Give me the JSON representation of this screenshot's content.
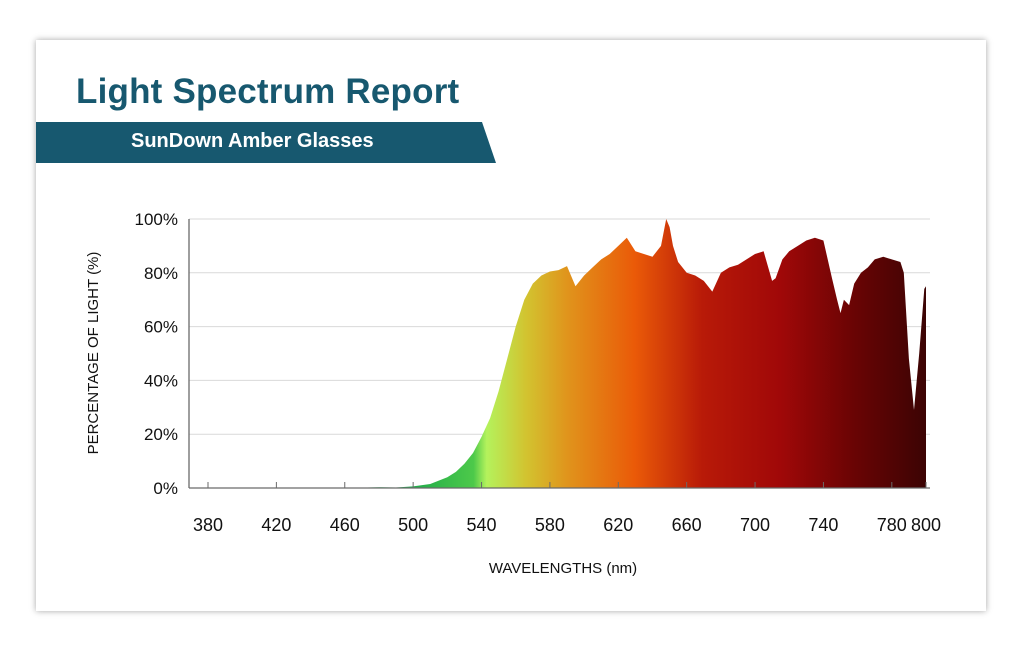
{
  "header": {
    "title": "Light Spectrum Report",
    "subtitle": "SunDown Amber Glasses",
    "accent_color": "#17586f"
  },
  "chart_data": {
    "type": "area",
    "title": "Light Spectrum Report",
    "subtitle": "SunDown Amber Glasses",
    "xlabel": "WAVELENGTHS (nm)",
    "ylabel": "PERCENTAGE OF LIGHT (%)",
    "xlim": [
      380,
      800
    ],
    "ylim": [
      0,
      100
    ],
    "x_ticks": [
      380,
      420,
      460,
      500,
      540,
      580,
      620,
      660,
      700,
      740,
      780,
      800
    ],
    "y_ticks": [
      "0%",
      "20%",
      "40%",
      "60%",
      "80%",
      "100%"
    ],
    "grid": "horizontal",
    "fill": "spectral gradient (green to dark red)",
    "x": [
      380,
      460,
      480,
      490,
      500,
      510,
      520,
      525,
      530,
      535,
      540,
      545,
      550,
      555,
      560,
      565,
      570,
      575,
      580,
      585,
      590,
      595,
      600,
      605,
      610,
      615,
      620,
      625,
      630,
      635,
      640,
      645,
      648,
      650,
      652,
      655,
      660,
      665,
      670,
      675,
      680,
      685,
      690,
      695,
      700,
      705,
      710,
      712,
      716,
      720,
      725,
      730,
      735,
      740,
      745,
      748,
      750,
      752,
      755,
      758,
      762,
      766,
      770,
      775,
      780,
      785,
      787,
      790,
      793,
      796,
      799,
      800
    ],
    "values": [
      0,
      0,
      0.3,
      0.2,
      0.6,
      1.5,
      4,
      6,
      9,
      13,
      19,
      26,
      36,
      48,
      60,
      70,
      76,
      79,
      80.5,
      81,
      82.5,
      75,
      79,
      82,
      85,
      87,
      90,
      93,
      88,
      87,
      86,
      90,
      100,
      97,
      90,
      84,
      80,
      79,
      77,
      73,
      80,
      82,
      83,
      85,
      87,
      88,
      77,
      78,
      85,
      88,
      90,
      92,
      93,
      92,
      78,
      70,
      65,
      70,
      68,
      76,
      80,
      82,
      85,
      86,
      85,
      84,
      80,
      48,
      29,
      50,
      74,
      75
    ]
  }
}
